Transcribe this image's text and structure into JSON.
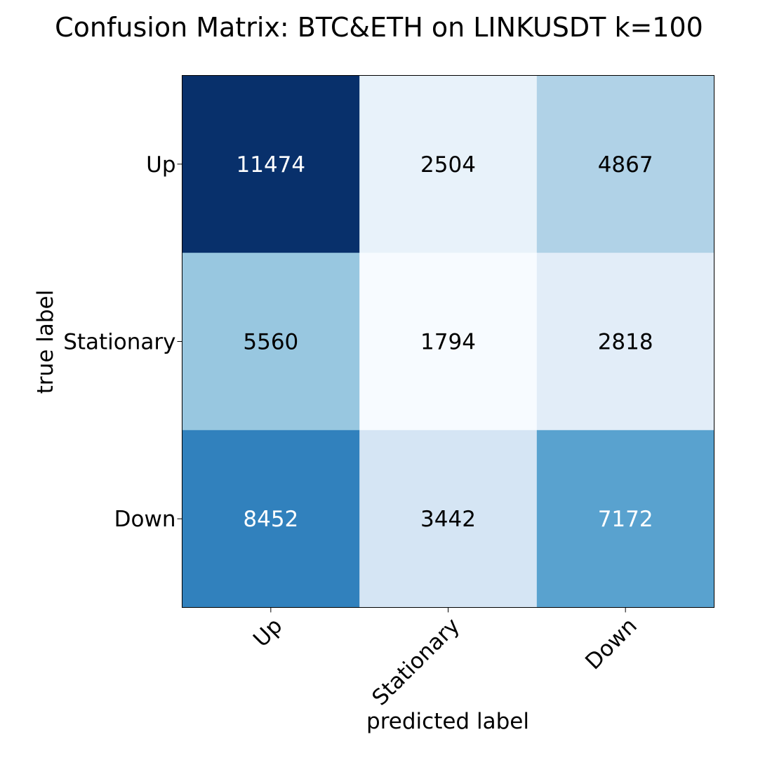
{
  "chart_data": {
    "type": "heatmap",
    "title": "Confusion Matrix: BTC&ETH on LINKUSDT k=100",
    "xlabel": "predicted label",
    "ylabel": "true label",
    "x_tick_labels": [
      "Up",
      "Stationary",
      "Down"
    ],
    "y_tick_labels": [
      "Up",
      "Stationary",
      "Down"
    ],
    "matrix": [
      [
        11474,
        2504,
        4867
      ],
      [
        5560,
        1794,
        2818
      ],
      [
        8452,
        3442,
        7172
      ]
    ],
    "colormap": "Blues",
    "grid": false,
    "colorbar": false
  }
}
